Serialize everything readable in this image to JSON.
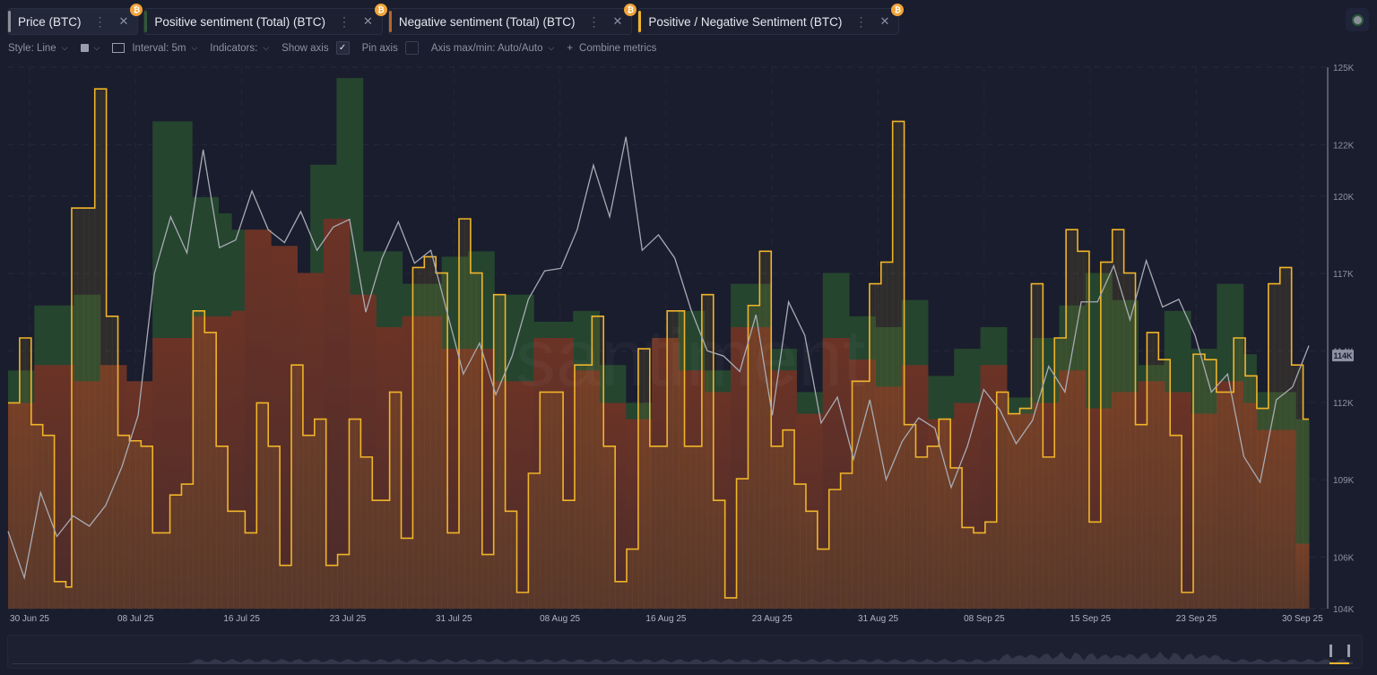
{
  "tabs": [
    {
      "label": "Price (BTC)",
      "color": "#8a8f9a",
      "badge": "₿",
      "active": true
    },
    {
      "label": "Positive sentiment (Total) (BTC)",
      "color": "#2f5a35",
      "badge": "₿",
      "active": false
    },
    {
      "label": "Negative sentiment (Total) (BTC)",
      "color": "#b8652a",
      "badge": "₿",
      "active": false
    },
    {
      "label": "Positive / Negative Sentiment (BTC)",
      "color": "#f0b429",
      "badge": "₿",
      "active": false
    }
  ],
  "toolbar": {
    "style_label": "Style: Line",
    "interval_label": "Interval: 5m",
    "indicators_label": "Indicators:",
    "show_axis_label": "Show axis",
    "show_axis_checked": true,
    "pin_axis_label": "Pin axis",
    "pin_axis_checked": false,
    "axis_minmax_label": "Axis max/min: Auto/Auto",
    "combine_label": "Combine metrics"
  },
  "watermark": "santiment",
  "chart_data": {
    "type": "area",
    "title": "",
    "xlabel": "",
    "ylabel": "Price (BTC)",
    "x_ticks": [
      "30 Jun 25",
      "08 Jul 25",
      "16 Jul 25",
      "23 Jul 25",
      "31 Jul 25",
      "08 Aug 25",
      "16 Aug 25",
      "23 Aug 25",
      "31 Aug 25",
      "08 Sep 25",
      "15 Sep 25",
      "23 Sep 25",
      "30 Sep 25"
    ],
    "y_ticks": [
      "125K",
      "122K",
      "120K",
      "117K",
      "114K",
      "112K",
      "109K",
      "106K",
      "104K"
    ],
    "ylim": [
      104000,
      125000
    ],
    "current_price_label": "114K",
    "grid": true,
    "legend": "tabs-top",
    "sentiment_scale_note": "relative units (0-100 of plot height)",
    "series": [
      {
        "name": "Positive sentiment (Total) (BTC)",
        "kind": "step-area",
        "color": "#25452f",
        "values": [
          44,
          44,
          56,
          56,
          56,
          58,
          58,
          36,
          36,
          34,
          34,
          90,
          90,
          90,
          76,
          76,
          73,
          70,
          70,
          55,
          55,
          40,
          40,
          82,
          82,
          98,
          98,
          66,
          66,
          66,
          60,
          60,
          60,
          65,
          65,
          66,
          66,
          58,
          58,
          58,
          53,
          53,
          53,
          55,
          55,
          45,
          45,
          38,
          38,
          42,
          42,
          55,
          55,
          44,
          44,
          60,
          60,
          60,
          48,
          48,
          40,
          40,
          62,
          62,
          54,
          54,
          52,
          52,
          57,
          57,
          43,
          43,
          48,
          48,
          52,
          52,
          39,
          39,
          50,
          50,
          56,
          56,
          62,
          62,
          57,
          57,
          45,
          45,
          55,
          55,
          48,
          48,
          60,
          60,
          47,
          40,
          40,
          40,
          35
        ]
      },
      {
        "name": "Negative sentiment (Total) (BTC)",
        "kind": "step-area",
        "color": "#5e3329",
        "values": [
          38,
          38,
          45,
          45,
          45,
          42,
          42,
          45,
          45,
          42,
          42,
          50,
          50,
          50,
          54,
          54,
          54,
          55,
          70,
          70,
          67,
          67,
          62,
          62,
          72,
          72,
          58,
          58,
          52,
          52,
          54,
          54,
          54,
          48,
          48,
          48,
          48,
          42,
          42,
          42,
          50,
          50,
          50,
          44,
          44,
          38,
          38,
          35,
          35,
          50,
          50,
          44,
          44,
          40,
          40,
          52,
          52,
          52,
          44,
          44,
          36,
          36,
          50,
          50,
          46,
          46,
          41,
          41,
          45,
          45,
          35,
          35,
          38,
          38,
          45,
          45,
          36,
          36,
          38,
          38,
          44,
          44,
          37,
          37,
          40,
          40,
          42,
          42,
          40,
          40,
          36,
          36,
          42,
          42,
          38,
          33,
          33,
          33,
          12
        ]
      },
      {
        "name": "Positive / Negative Sentiment (BTC)",
        "kind": "step-line",
        "color": "#f0b429",
        "values": [
          38,
          38,
          50,
          50,
          34,
          34,
          32,
          32,
          5,
          5,
          4,
          74,
          74,
          74,
          74,
          96,
          96,
          54,
          54,
          32,
          32,
          31,
          31,
          30,
          30,
          14,
          14,
          14,
          21,
          21,
          23,
          23,
          55,
          55,
          51,
          51,
          30,
          30,
          18,
          18,
          18,
          14,
          14,
          38,
          38,
          30,
          30,
          8,
          8,
          45,
          45,
          32,
          32,
          35,
          35,
          8,
          8,
          10,
          10,
          35,
          35,
          28,
          28,
          20,
          20,
          20,
          40,
          40,
          13,
          13,
          63,
          63,
          65,
          65,
          62,
          62,
          14,
          14,
          72,
          72,
          62,
          62,
          10,
          10,
          58,
          58,
          18,
          18,
          3,
          3,
          25,
          25,
          40,
          40,
          40,
          40,
          20,
          20,
          45,
          45,
          45,
          54,
          54,
          30,
          30,
          5,
          5,
          11,
          11,
          48,
          48,
          30,
          30,
          30,
          55,
          55,
          55,
          30,
          30,
          30,
          58,
          58,
          20,
          20,
          2,
          2,
          24,
          24,
          56,
          56,
          66,
          66,
          30,
          30,
          33,
          33,
          23,
          23,
          18,
          18,
          11,
          11,
          22,
          22,
          25,
          25,
          42,
          42,
          42,
          60,
          60,
          64,
          64,
          90,
          90,
          34,
          34,
          28,
          28,
          30,
          30,
          35,
          35,
          26,
          26,
          15,
          15,
          14,
          14,
          16,
          16,
          40,
          40,
          36,
          36,
          37,
          37,
          60,
          60,
          28,
          28,
          50,
          50,
          70,
          70,
          66,
          66,
          16,
          16,
          64,
          64,
          70,
          70,
          62,
          62,
          34,
          34,
          51,
          51,
          46,
          46,
          32,
          32,
          3,
          3,
          47,
          47,
          46,
          46,
          40,
          40,
          40,
          50,
          50,
          43,
          43,
          37,
          37,
          60,
          60,
          63,
          63,
          45,
          45,
          35
        ]
      },
      {
        "name": "Price (BTC)",
        "kind": "line",
        "color": "#a8abb4",
        "values": [
          107000,
          105200,
          108500,
          106800,
          107600,
          107200,
          108000,
          109500,
          111500,
          117000,
          119200,
          117800,
          121800,
          118000,
          118300,
          120200,
          118700,
          118200,
          119400,
          117900,
          118800,
          119100,
          115500,
          117600,
          119000,
          117400,
          117900,
          115500,
          113100,
          114300,
          112300,
          113800,
          116000,
          117100,
          117200,
          118700,
          121200,
          119200,
          122300,
          117900,
          118500,
          117600,
          115600,
          114000,
          113800,
          113200,
          115400,
          111500,
          115900,
          114600,
          111200,
          112200,
          109800,
          112100,
          109000,
          110500,
          111400,
          111000,
          108700,
          110300,
          112500,
          111700,
          110400,
          111300,
          113400,
          112400,
          115900,
          115900,
          117300,
          115200,
          117500,
          115700,
          116000,
          114600,
          112400,
          113100,
          109900,
          108900,
          112100,
          112600,
          114200
        ]
      }
    ]
  }
}
